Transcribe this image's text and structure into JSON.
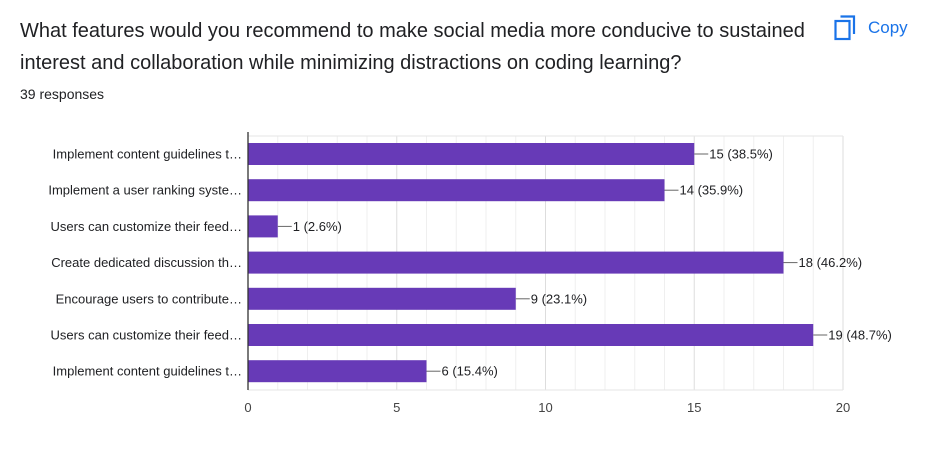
{
  "question": {
    "title": "What features would you recommend to make social media more conducive to sustained interest and collaboration while minimizing distractions on coding learning?",
    "responses": "39 responses"
  },
  "copy_button": {
    "label": "Copy",
    "icon": "copy-icon"
  },
  "colors": {
    "bar": "#673ab7",
    "accent": "#1a73e8",
    "grid": "#e8e8e8",
    "axis": "#333333"
  },
  "chart_data": {
    "type": "bar",
    "orientation": "horizontal",
    "categories": [
      "Implement content guidelines t…",
      "Implement a user ranking syste…",
      "Users can customize their feed…",
      "Create dedicated discussion th…",
      "Encourage users to contribute…",
      "Users can customize their feed…",
      "Implement content guidelines t…"
    ],
    "values": [
      15,
      14,
      1,
      18,
      9,
      19,
      6
    ],
    "data_labels": [
      "15 (38.5%)",
      "14 (35.9%)",
      "1 (2.6%)",
      "18 (46.2%)",
      "9 (23.1%)",
      "19 (48.7%)",
      "6 (15.4%)"
    ],
    "xlim": [
      0,
      20
    ],
    "xticks": [
      0,
      5,
      10,
      15,
      20
    ],
    "grid": true,
    "legend": "none"
  }
}
